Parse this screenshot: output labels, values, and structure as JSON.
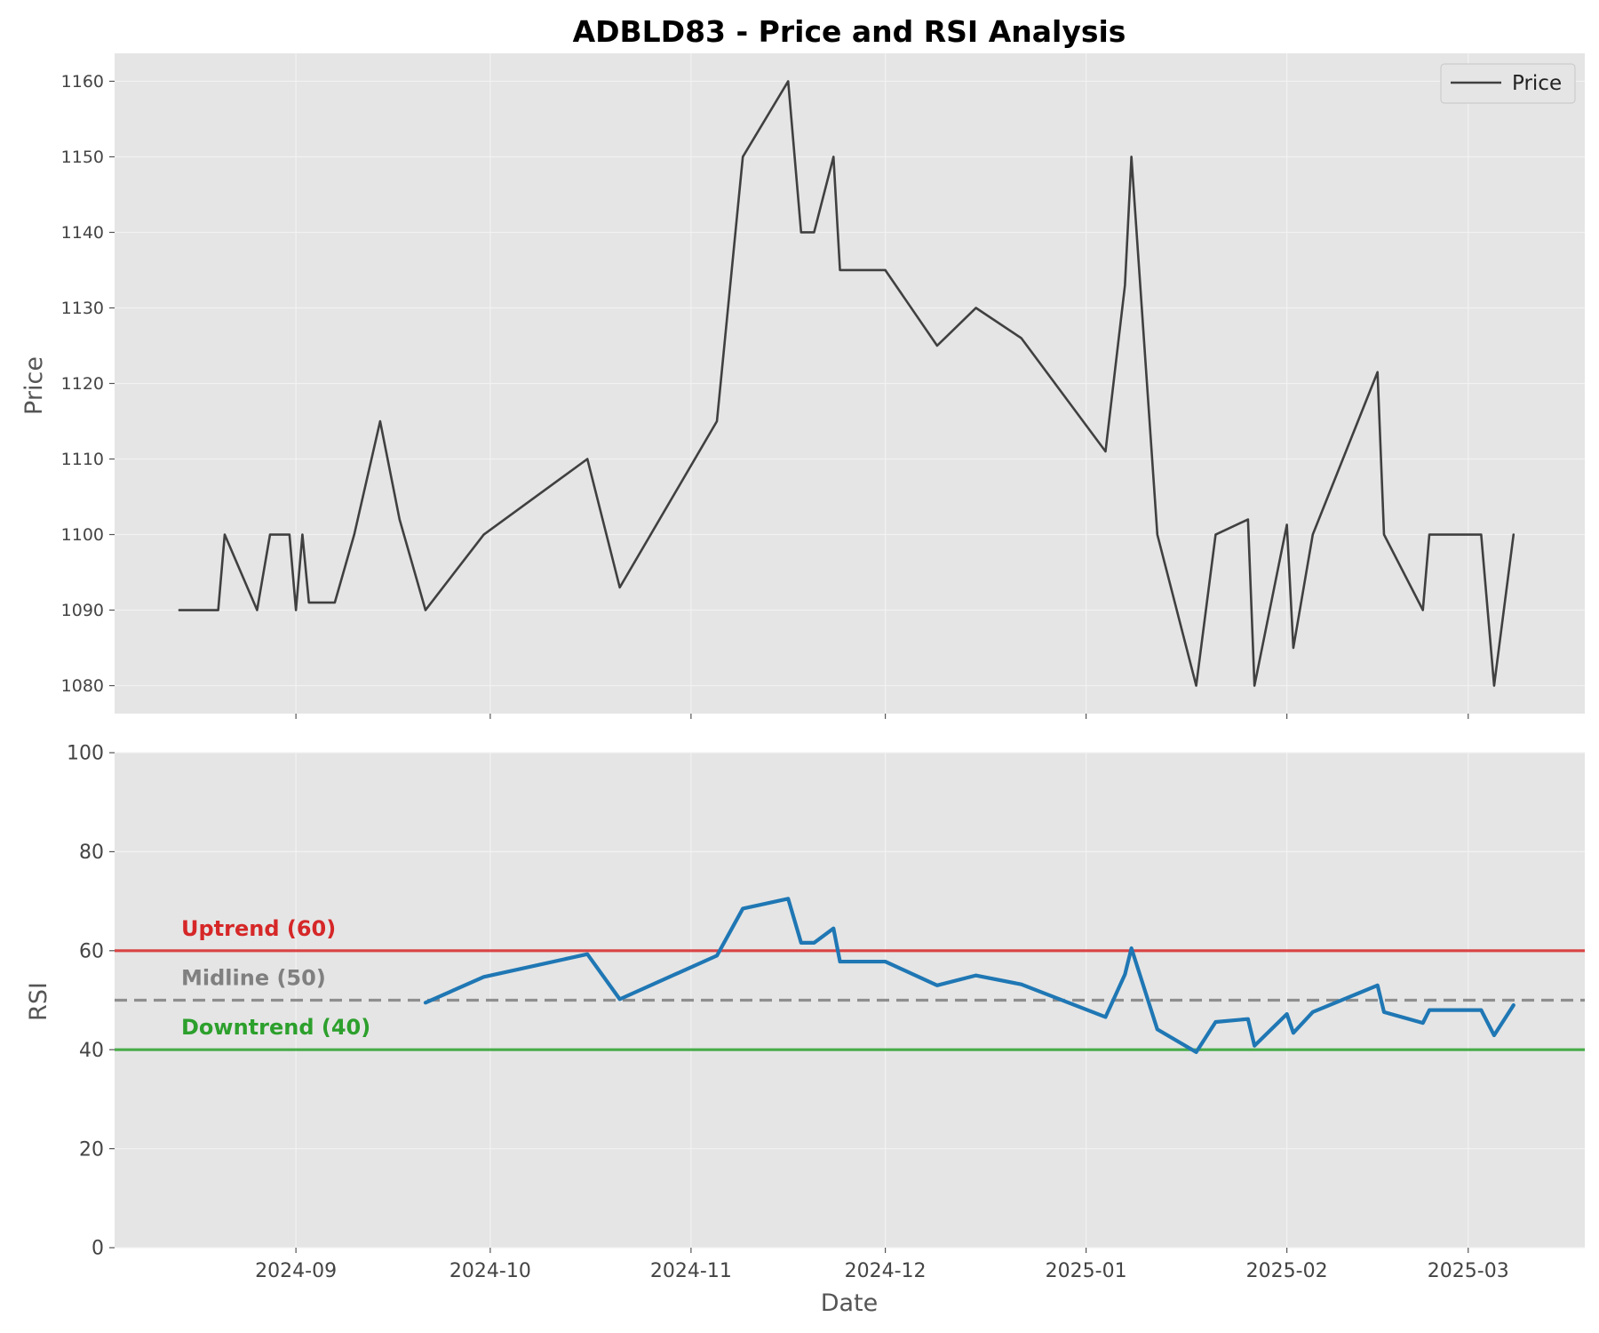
{
  "chart_data": {
    "title": "ADBLD83 - Price and RSI Analysis",
    "xlabel": "Date",
    "x_ticks": [
      "2024-09",
      "2024-10",
      "2024-11",
      "2024-12",
      "2025-01",
      "2025-02",
      "2025-03"
    ],
    "x_range": [
      "2024-08-04",
      "2025-03-19"
    ],
    "panels": [
      {
        "type": "line",
        "ylabel": "Price",
        "ylim": [
          1076.3,
          1163.7
        ],
        "y_ticks": [
          "1080",
          "1090",
          "1100",
          "1110",
          "1120",
          "1130",
          "1140",
          "1150",
          "1160"
        ],
        "grid": true,
        "legend": {
          "placement": "top-right",
          "entries": [
            "Price"
          ]
        },
        "series": [
          {
            "name": "Price",
            "color": "#404040",
            "points": [
              [
                "2024-08-14",
                1090
              ],
              [
                "2024-08-20",
                1090
              ],
              [
                "2024-08-21",
                1100
              ],
              [
                "2024-08-26",
                1090
              ],
              [
                "2024-08-28",
                1100
              ],
              [
                "2024-08-31",
                1100
              ],
              [
                "2024-09-01",
                1090
              ],
              [
                "2024-09-02",
                1100
              ],
              [
                "2024-09-03",
                1091
              ],
              [
                "2024-09-07",
                1091
              ],
              [
                "2024-09-10",
                1100
              ],
              [
                "2024-09-14",
                1115
              ],
              [
                "2024-09-17",
                1102
              ],
              [
                "2024-09-21",
                1090
              ],
              [
                "2024-09-30",
                1100
              ],
              [
                "2024-10-16",
                1110
              ],
              [
                "2024-10-21",
                1093
              ],
              [
                "2024-11-05",
                1115
              ],
              [
                "2024-11-09",
                1150
              ],
              [
                "2024-11-16",
                1160
              ],
              [
                "2024-11-18",
                1140
              ],
              [
                "2024-11-20",
                1140
              ],
              [
                "2024-11-23",
                1150
              ],
              [
                "2024-11-24",
                1135
              ],
              [
                "2024-12-01",
                1135
              ],
              [
                "2024-12-09",
                1125
              ],
              [
                "2024-12-15",
                1130
              ],
              [
                "2024-12-22",
                1126
              ],
              [
                "2025-01-04",
                1111
              ],
              [
                "2025-01-07",
                1133
              ],
              [
                "2025-01-08",
                1150
              ],
              [
                "2025-01-12",
                1100
              ],
              [
                "2025-01-18",
                1080
              ],
              [
                "2025-01-21",
                1100
              ],
              [
                "2025-01-26",
                1102
              ],
              [
                "2025-01-27",
                1080
              ],
              [
                "2025-02-01",
                1101.3
              ],
              [
                "2025-02-02",
                1085
              ],
              [
                "2025-02-05",
                1100
              ],
              [
                "2025-02-15",
                1121.5
              ],
              [
                "2025-02-16",
                1100
              ],
              [
                "2025-02-22",
                1090
              ],
              [
                "2025-02-23",
                1100
              ],
              [
                "2025-03-03",
                1100
              ],
              [
                "2025-03-05",
                1080
              ],
              [
                "2025-03-08",
                1100
              ]
            ]
          }
        ]
      },
      {
        "type": "line",
        "ylabel": "RSI",
        "ylim": [
          0,
          100
        ],
        "y_ticks": [
          "0",
          "20",
          "40",
          "60",
          "80",
          "100"
        ],
        "grid": true,
        "reference_lines": [
          {
            "value": 60,
            "label": "Uptrend (60)",
            "color": "#d62728",
            "style": "solid"
          },
          {
            "value": 50,
            "label": "Midline (50)",
            "color": "#808080",
            "style": "dashed"
          },
          {
            "value": 40,
            "label": "Downtrend (40)",
            "color": "#2ca02c",
            "style": "solid"
          }
        ],
        "series": [
          {
            "name": "RSI",
            "color": "#1f77b4",
            "points": [
              [
                "2024-09-21",
                49.5
              ],
              [
                "2024-09-30",
                54.7
              ],
              [
                "2024-10-16",
                59.3
              ],
              [
                "2024-10-21",
                50.2
              ],
              [
                "2024-11-05",
                59.0
              ],
              [
                "2024-11-09",
                68.5
              ],
              [
                "2024-11-16",
                70.5
              ],
              [
                "2024-11-18",
                61.6
              ],
              [
                "2024-11-20",
                61.6
              ],
              [
                "2024-11-23",
                64.5
              ],
              [
                "2024-11-24",
                57.8
              ],
              [
                "2024-12-01",
                57.8
              ],
              [
                "2024-12-09",
                53.0
              ],
              [
                "2024-12-15",
                55.0
              ],
              [
                "2024-12-22",
                53.2
              ],
              [
                "2025-01-04",
                46.6
              ],
              [
                "2025-01-07",
                55.2
              ],
              [
                "2025-01-08",
                60.5
              ],
              [
                "2025-01-12",
                44.1
              ],
              [
                "2025-01-18",
                39.5
              ],
              [
                "2025-01-21",
                45.6
              ],
              [
                "2025-01-26",
                46.2
              ],
              [
                "2025-01-27",
                40.8
              ],
              [
                "2025-02-01",
                47.2
              ],
              [
                "2025-02-02",
                43.4
              ],
              [
                "2025-02-05",
                47.6
              ],
              [
                "2025-02-15",
                53.0
              ],
              [
                "2025-02-16",
                47.6
              ],
              [
                "2025-02-22",
                45.4
              ],
              [
                "2025-02-23",
                48.0
              ],
              [
                "2025-03-03",
                48.0
              ],
              [
                "2025-03-05",
                42.9
              ],
              [
                "2025-03-08",
                49.0
              ]
            ]
          }
        ]
      }
    ]
  }
}
